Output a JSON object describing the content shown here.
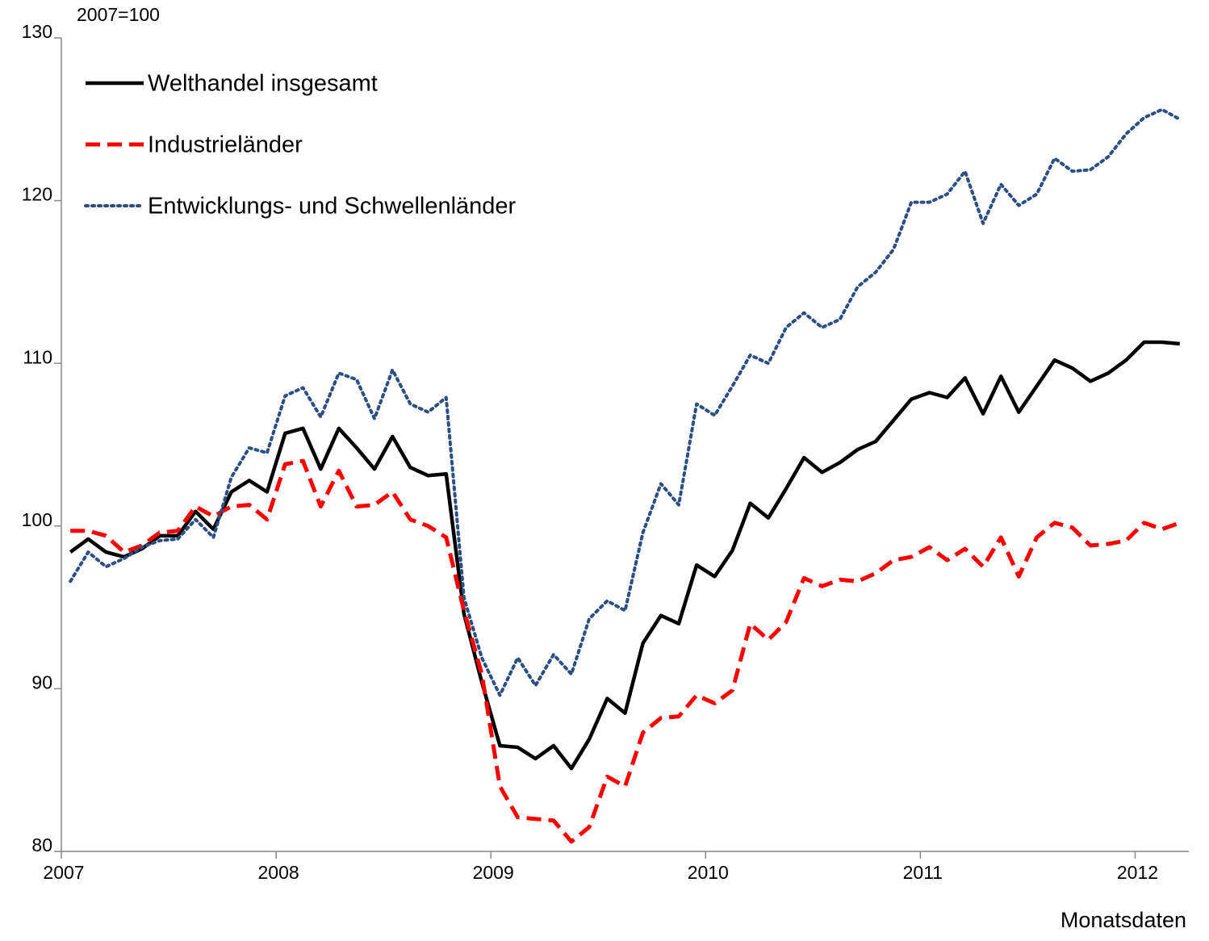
{
  "chart_data": {
    "type": "line",
    "subtitle": "2007=100",
    "x_label": "Monatsdaten",
    "x": [
      2007.042,
      2007.125,
      2007.208,
      2007.292,
      2007.375,
      2007.458,
      2007.542,
      2007.625,
      2007.708,
      2007.792,
      2007.875,
      2007.958,
      2008.042,
      2008.125,
      2008.208,
      2008.292,
      2008.375,
      2008.458,
      2008.542,
      2008.625,
      2008.708,
      2008.792,
      2008.875,
      2008.958,
      2009.042,
      2009.125,
      2009.208,
      2009.292,
      2009.375,
      2009.458,
      2009.542,
      2009.625,
      2009.708,
      2009.792,
      2009.875,
      2009.958,
      2010.042,
      2010.125,
      2010.208,
      2010.292,
      2010.375,
      2010.458,
      2010.542,
      2010.625,
      2010.708,
      2010.792,
      2010.875,
      2010.958,
      2011.042,
      2011.125,
      2011.208,
      2011.292,
      2011.375,
      2011.458,
      2011.542,
      2011.625,
      2011.708,
      2011.792,
      2011.875,
      2011.958,
      2012.042,
      2012.125,
      2012.208
    ],
    "series": [
      {
        "name": "Welthandel insgesamt",
        "color": "#000000",
        "style": "solid",
        "values": [
          98.4,
          99.2,
          98.4,
          98.1,
          98.6,
          99.4,
          99.4,
          100.9,
          99.8,
          102.1,
          102.8,
          102.1,
          105.7,
          106.0,
          103.5,
          106.0,
          104.8,
          103.5,
          105.5,
          103.6,
          103.1,
          103.2,
          94.6,
          90.4,
          86.5,
          86.4,
          85.7,
          86.5,
          85.1,
          86.9,
          89.4,
          88.5,
          92.8,
          94.5,
          94.0,
          97.6,
          96.9,
          98.5,
          101.4,
          100.5,
          102.3,
          104.2,
          103.3,
          103.9,
          104.7,
          105.2,
          106.5,
          107.8,
          108.2,
          107.9,
          109.1,
          106.9,
          109.2,
          107.0,
          108.6,
          110.2,
          109.7,
          108.9,
          109.4,
          110.2,
          111.3,
          111.3,
          111.2
        ]
      },
      {
        "name": "Industrieländer",
        "color": "#ff0000",
        "style": "dashed",
        "values": [
          99.7,
          99.7,
          99.4,
          98.4,
          98.8,
          99.6,
          99.7,
          101.2,
          100.6,
          101.2,
          101.3,
          100.4,
          103.8,
          104.0,
          101.2,
          103.4,
          101.2,
          101.3,
          102.1,
          100.4,
          100.0,
          99.3,
          94.8,
          90.9,
          84.0,
          82.1,
          82.0,
          81.9,
          80.6,
          81.5,
          84.6,
          84.0,
          87.3,
          88.2,
          88.3,
          89.6,
          89.1,
          89.9,
          94.0,
          93.0,
          94.1,
          96.8,
          96.3,
          96.7,
          96.6,
          97.1,
          97.9,
          98.1,
          98.7,
          97.9,
          98.6,
          97.5,
          99.3,
          96.9,
          99.3,
          100.2,
          99.9,
          98.8,
          98.9,
          99.1,
          100.2,
          99.8,
          100.2
        ]
      },
      {
        "name": "Entwicklungs- und Schwellenländer",
        "color": "#2b4f80",
        "style": "dotted",
        "values": [
          96.6,
          98.4,
          97.5,
          98.0,
          98.7,
          99.1,
          99.2,
          100.4,
          99.3,
          103.0,
          104.8,
          104.5,
          108.0,
          108.5,
          106.7,
          109.4,
          109.0,
          106.6,
          109.6,
          107.5,
          107.0,
          107.9,
          95.6,
          91.9,
          89.6,
          91.9,
          90.2,
          92.1,
          90.9,
          94.3,
          95.4,
          94.8,
          99.6,
          102.6,
          101.3,
          107.5,
          106.8,
          108.6,
          110.5,
          110.0,
          112.2,
          113.1,
          112.2,
          112.7,
          114.7,
          115.6,
          117.0,
          119.9,
          119.9,
          120.4,
          121.8,
          118.6,
          121.0,
          119.7,
          120.4,
          122.6,
          121.8,
          121.9,
          122.7,
          124.1,
          125.1,
          125.6,
          125.0
        ]
      }
    ],
    "xlim": [
      2007,
      2012.25
    ],
    "xticks": [
      2007,
      2008,
      2009,
      2010,
      2011,
      2012
    ],
    "ylim": [
      80,
      130
    ],
    "yticks": [
      80,
      90,
      100,
      110,
      120,
      130
    ],
    "grid": false,
    "legend": "upper left"
  }
}
